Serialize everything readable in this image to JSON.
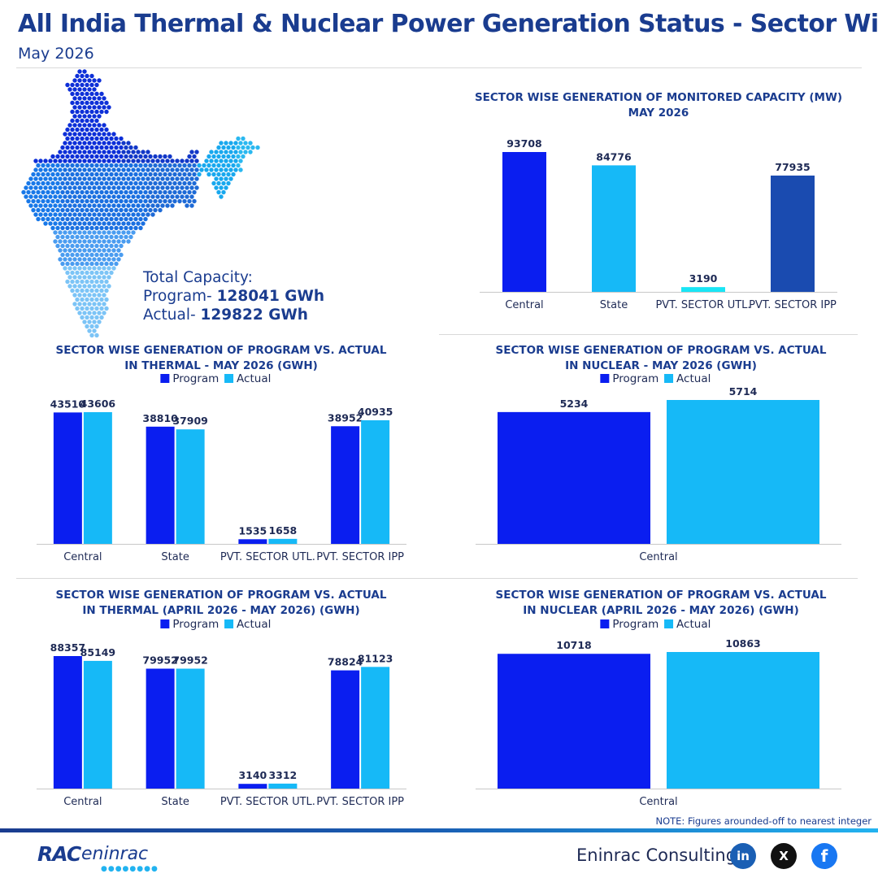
{
  "header": {
    "title": "All India Thermal & Nuclear Power Generation Status - Sector Wise",
    "subtitle": "May 2026"
  },
  "capacity": {
    "label": "Total Capacity:",
    "program_label": "Program- ",
    "program_value": "128041 GWh",
    "actual_label": "Actual- ",
    "actual_value": "129822 GWh"
  },
  "note": "NOTE: Figures arounded-off to nearest integer",
  "footer": {
    "company": "Eninrac Consulting",
    "logo_mark": "RAC",
    "logo_text": "eninrac",
    "social": [
      "in",
      "X",
      "f"
    ]
  },
  "colors": {
    "title": "#1a3c8f",
    "program": "#0a1ef0",
    "actual": "#16b9f7",
    "central": "#0a1ef0",
    "state": "#16b9f7",
    "pvt_utl": "#19e5f5",
    "pvt_ipp": "#1a4bb0"
  },
  "chart_data": [
    {
      "type": "bar",
      "title": [
        "SECTOR WISE GENERATION OF MONITORED CAPACITY (MW)",
        "MAY 2026"
      ],
      "categories": [
        "Central",
        "State",
        "PVT. SECTOR UTL.",
        "PVT. SECTOR IPP"
      ],
      "values": [
        93708,
        84776,
        3190,
        77935
      ],
      "ylim": [
        0,
        93708
      ]
    },
    {
      "type": "bar",
      "title": [
        "SECTOR WISE GENERATION OF PROGRAM VS. ACTUAL",
        "IN THERMAL  - MAY 2026 (GWH)"
      ],
      "legend": [
        "Program",
        "Actual"
      ],
      "categories": [
        "Central",
        "State",
        "PVT. SECTOR UTL.",
        "PVT. SECTOR IPP"
      ],
      "series": [
        {
          "name": "Program",
          "values": [
            43510,
            38810,
            1535,
            38952
          ]
        },
        {
          "name": "Actual",
          "values": [
            43606,
            37909,
            1658,
            40935
          ]
        }
      ],
      "ylim": [
        0,
        43606
      ]
    },
    {
      "type": "bar",
      "title": [
        "SECTOR WISE GENERATION OF PROGRAM VS. ACTUAL",
        "IN NUCLEAR  - MAY 2026 (GWH)"
      ],
      "legend": [
        "Program",
        "Actual"
      ],
      "categories": [
        "Central"
      ],
      "series": [
        {
          "name": "Program",
          "values": [
            5234
          ]
        },
        {
          "name": "Actual",
          "values": [
            5714
          ]
        }
      ],
      "ylim": [
        0,
        5714
      ]
    },
    {
      "type": "bar",
      "title": [
        "SECTOR WISE GENERATION OF PROGRAM VS. ACTUAL",
        "IN THERMAL (APRIL 2026 - MAY 2026) (GWH)"
      ],
      "legend": [
        "Program",
        "Actual"
      ],
      "categories": [
        "Central",
        "State",
        "PVT. SECTOR UTL.",
        "PVT. SECTOR IPP"
      ],
      "series": [
        {
          "name": "Program",
          "values": [
            88357,
            79952,
            3140,
            78824
          ]
        },
        {
          "name": "Actual",
          "values": [
            85149,
            79952,
            3312,
            81123
          ]
        }
      ],
      "ylim": [
        0,
        88357
      ]
    },
    {
      "type": "bar",
      "title": [
        "SECTOR WISE GENERATION OF PROGRAM VS. ACTUAL",
        "IN NUCLEAR (APRIL 2026 - MAY 2026) (GWH)"
      ],
      "legend": [
        "Program",
        "Actual"
      ],
      "categories": [
        "Central"
      ],
      "series": [
        {
          "name": "Program",
          "values": [
            10718
          ]
        },
        {
          "name": "Actual",
          "values": [
            10863
          ]
        }
      ],
      "ylim": [
        0,
        10863
      ]
    }
  ]
}
